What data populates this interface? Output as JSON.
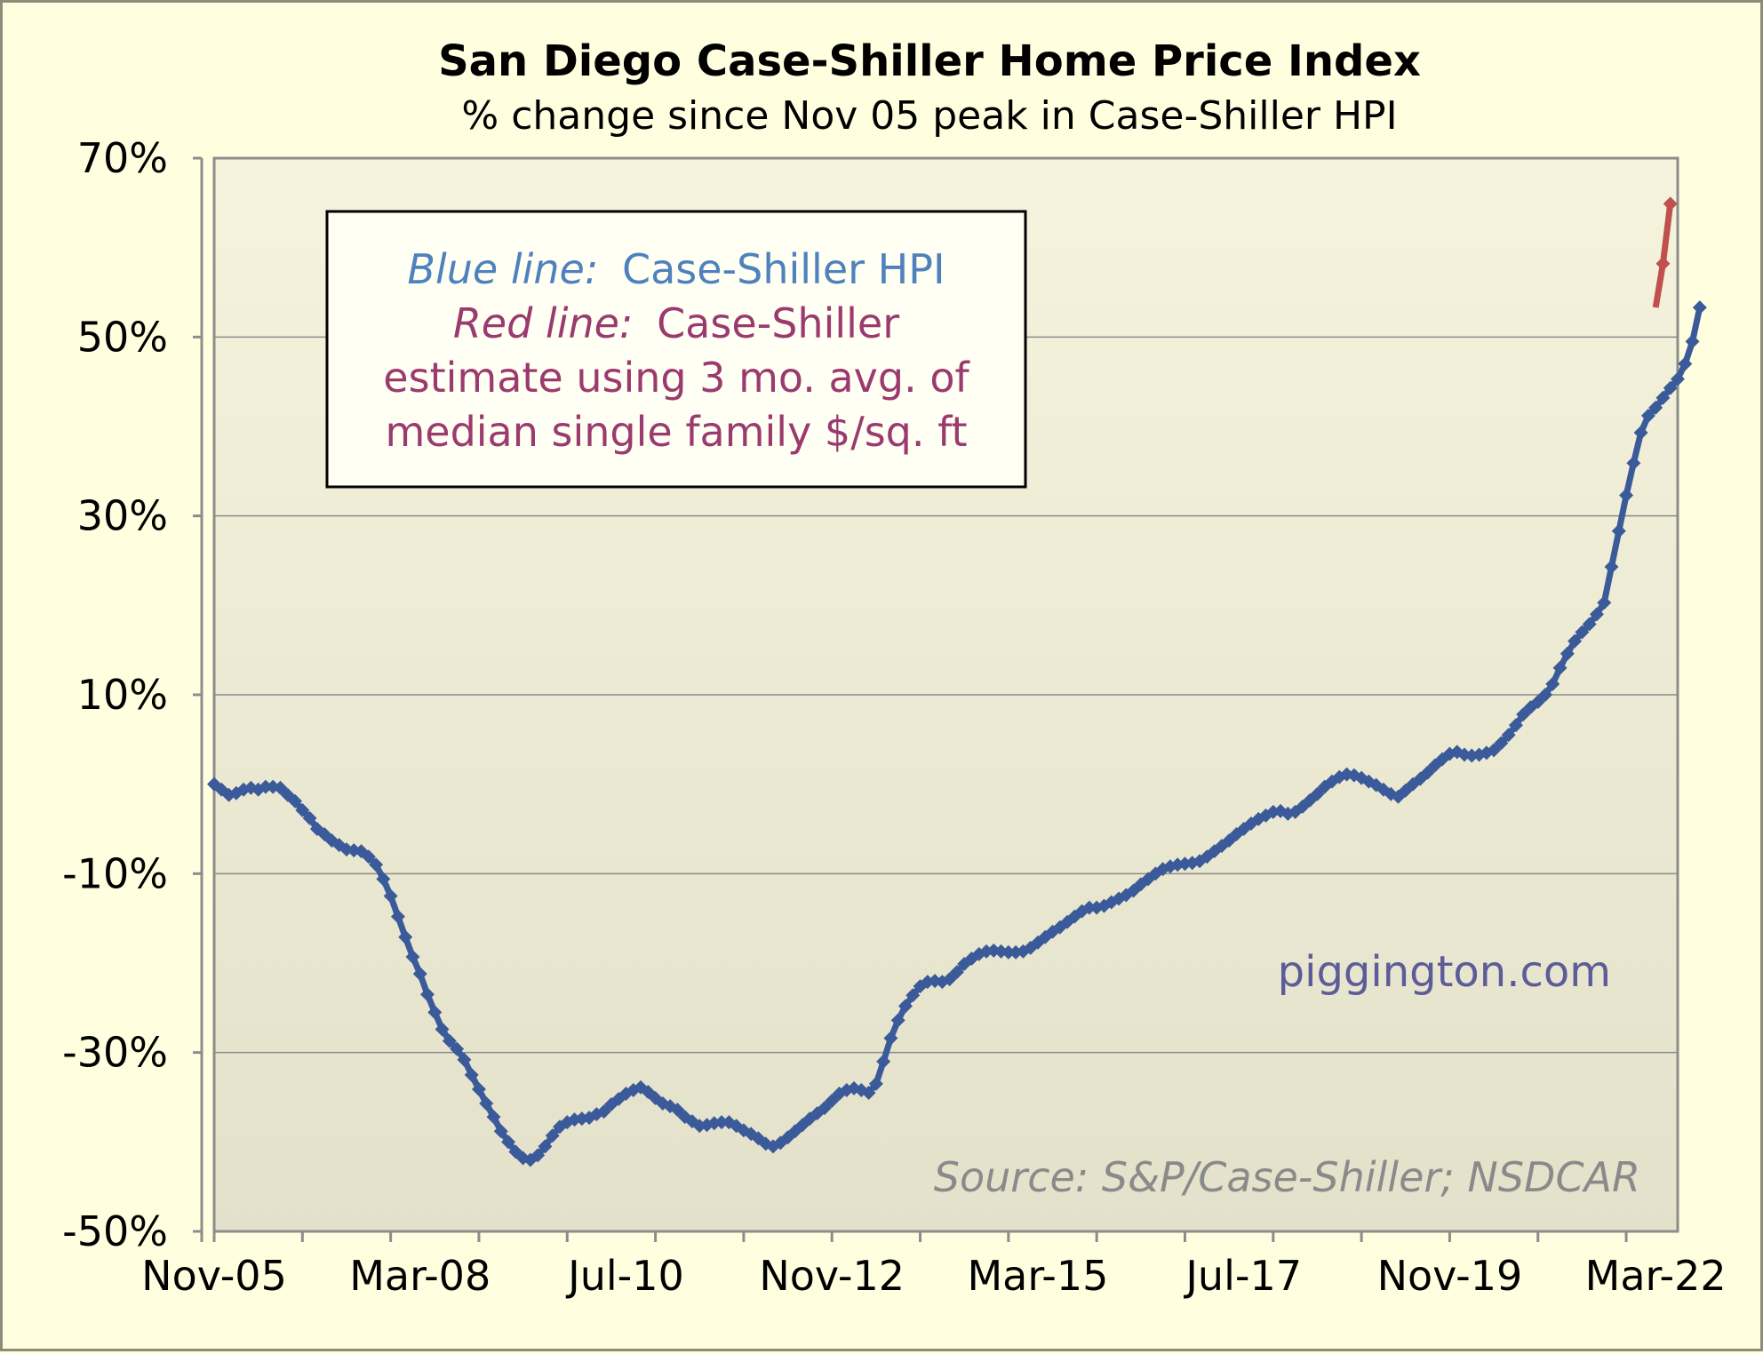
{
  "chart_data": {
    "type": "line",
    "title": "San Diego Case-Shiller Home Price Index",
    "subtitle": "% change since Nov 05 peak in Case-Shiller HPI",
    "xlabel": "",
    "ylabel": "",
    "x_tick_labels": [
      "Nov-05",
      "Mar-08",
      "Jul-10",
      "Nov-12",
      "Mar-15",
      "Jul-17",
      "Nov-19",
      "Mar-22"
    ],
    "y_tick_labels": [
      "70%",
      "50%",
      "30%",
      "10%",
      "-10%",
      "-30%",
      "-50%"
    ],
    "ylim": [
      -50,
      70
    ],
    "xlim": [
      "2005-11",
      "2022-06"
    ],
    "grid": "horizontal",
    "legend": {
      "blue_label": "Blue line:",
      "blue_text": "Case-Shiller HPI",
      "red_label": "Red line:",
      "red_text_1": "Case-Shiller",
      "red_text_2": "estimate using 3 mo. avg. of",
      "red_text_3": "median single family $/sq. ft",
      "placement": "top-left"
    },
    "watermark": "piggington.com",
    "source": "Source: S&P/Case-Shiller; NSDCAR",
    "colors": {
      "blue": "#3a5a9a",
      "red": "#c0504d",
      "blue_label": "#4f81bd",
      "red_label": "#9b3a6e",
      "plot_bg_top": "#f5f3dc",
      "plot_bg_bottom": "#e6e3cd"
    },
    "series": [
      {
        "name": "Case-Shiller HPI",
        "color": "#3a5a9a",
        "start": "2005-11",
        "step": "month",
        "values": [
          0,
          -0.6,
          -1.2,
          -1.0,
          -0.6,
          -0.4,
          -0.6,
          -0.3,
          -0.3,
          -0.4,
          -1.2,
          -1.9,
          -2.9,
          -3.8,
          -5.0,
          -5.6,
          -6.3,
          -6.8,
          -7.3,
          -7.4,
          -7.5,
          -8.1,
          -9.0,
          -10.6,
          -12.5,
          -14.8,
          -17.1,
          -19.3,
          -21.2,
          -23.5,
          -25.5,
          -27.4,
          -28.7,
          -29.6,
          -30.8,
          -32.5,
          -34.1,
          -35.7,
          -37.2,
          -38.8,
          -40.0,
          -41.1,
          -41.8,
          -42.0,
          -41.5,
          -40.5,
          -39.3,
          -38.3,
          -37.8,
          -37.5,
          -37.4,
          -37.3,
          -36.9,
          -36.6,
          -35.8,
          -35.2,
          -34.6,
          -34.2,
          -33.9,
          -34.4,
          -35.1,
          -35.7,
          -36.0,
          -36.4,
          -37.2,
          -37.7,
          -38.2,
          -38.1,
          -37.9,
          -37.8,
          -37.8,
          -38.2,
          -38.7,
          -39.1,
          -39.6,
          -40.2,
          -40.5,
          -40.1,
          -39.5,
          -38.8,
          -38.1,
          -37.4,
          -36.8,
          -36.2,
          -35.4,
          -34.6,
          -34.2,
          -34.0,
          -34.2,
          -34.5,
          -33.5,
          -31.0,
          -28.4,
          -26.4,
          -24.8,
          -23.6,
          -22.6,
          -22.1,
          -22.0,
          -22.1,
          -21.8,
          -21.0,
          -20.1,
          -19.5,
          -19.0,
          -18.7,
          -18.6,
          -18.7,
          -18.8,
          -18.8,
          -18.7,
          -18.3,
          -17.7,
          -17.1,
          -16.5,
          -16.0,
          -15.4,
          -14.8,
          -14.2,
          -13.8,
          -13.8,
          -13.6,
          -13.2,
          -12.8,
          -12.4,
          -11.9,
          -11.2,
          -10.6,
          -10.0,
          -9.5,
          -9.2,
          -9.0,
          -8.9,
          -8.8,
          -8.6,
          -8.1,
          -7.5,
          -6.9,
          -6.3,
          -5.6,
          -5.0,
          -4.4,
          -3.9,
          -3.5,
          -3.1,
          -3.0,
          -3.3,
          -3.1,
          -2.5,
          -1.8,
          -1.1,
          -0.3,
          0.3,
          0.8,
          1.1,
          1.0,
          0.7,
          0.3,
          -0.1,
          -0.6,
          -1.1,
          -1.4,
          -0.7,
          0,
          0.6,
          1.3,
          2.1,
          2.8,
          3.4,
          3.6,
          3.3,
          3.2,
          3.3,
          3.5,
          3.8,
          4.6,
          5.5,
          6.6,
          7.8,
          8.6,
          9.2,
          10.0,
          11.2,
          13.0,
          14.6,
          16.0,
          17.0,
          17.9,
          19.0,
          20.3,
          24.3,
          28.3,
          32.3,
          35.9,
          39.3,
          41.2,
          42.1,
          43.2,
          44.3,
          45.3,
          47.0,
          49.5,
          53.3
        ]
      },
      {
        "name": "Case-Shiller estimate",
        "color": "#c0504d",
        "start": "2022-03",
        "step": "month",
        "values": [
          53.3,
          58.2,
          64.9
        ]
      }
    ]
  }
}
